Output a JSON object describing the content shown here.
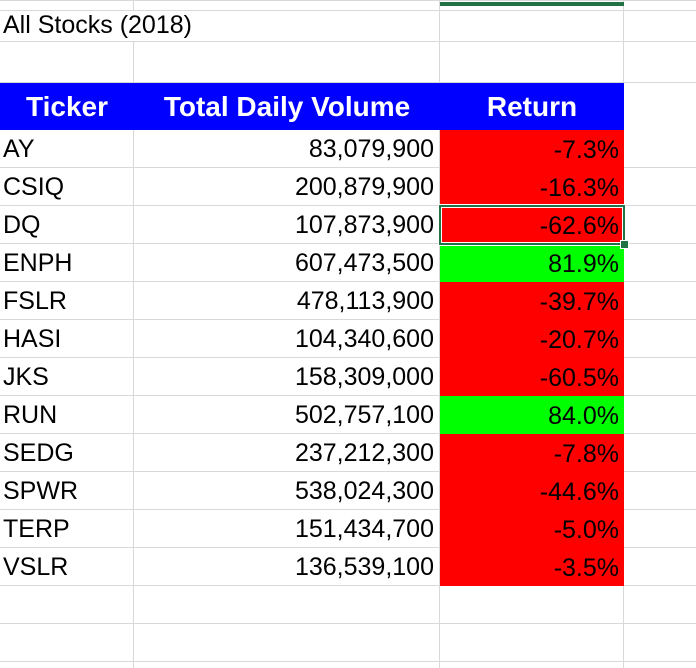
{
  "sheet": {
    "title": "All Stocks (2018)",
    "table": {
      "headers": [
        "Ticker",
        "Total Daily Volume",
        "Return"
      ],
      "rows": [
        {
          "ticker": "AY",
          "volume": "83,079,900",
          "return": "-7.3%",
          "positive": false
        },
        {
          "ticker": "CSIQ",
          "volume": "200,879,900",
          "return": "-16.3%",
          "positive": false
        },
        {
          "ticker": "DQ",
          "volume": "107,873,900",
          "return": "-62.6%",
          "positive": false,
          "selected": true
        },
        {
          "ticker": "ENPH",
          "volume": "607,473,500",
          "return": "81.9%",
          "positive": true
        },
        {
          "ticker": "FSLR",
          "volume": "478,113,900",
          "return": "-39.7%",
          "positive": false
        },
        {
          "ticker": "HASI",
          "volume": "104,340,600",
          "return": "-20.7%",
          "positive": false
        },
        {
          "ticker": "JKS",
          "volume": "158,309,000",
          "return": "-60.5%",
          "positive": false
        },
        {
          "ticker": "RUN",
          "volume": "502,757,100",
          "return": "84.0%",
          "positive": true
        },
        {
          "ticker": "SEDG",
          "volume": "237,212,300",
          "return": "-7.8%",
          "positive": false
        },
        {
          "ticker": "SPWR",
          "volume": "538,024,300",
          "return": "-44.6%",
          "positive": false
        },
        {
          "ticker": "TERP",
          "volume": "151,434,700",
          "return": "-5.0%",
          "positive": false
        },
        {
          "ticker": "VSLR",
          "volume": "136,539,100",
          "return": "-3.5%",
          "positive": false
        }
      ]
    },
    "selection": {
      "ticker": "DQ",
      "column": "Return",
      "value": "-62.6%"
    },
    "colors": {
      "header_bg": "#0000FF",
      "header_text": "#FFFFFF",
      "negative_bg": "#FF0000",
      "positive_bg": "#00FF00",
      "selection_border": "#217346",
      "gridline": "#D8D8D8",
      "cell_text": "#000000",
      "sheet_bg": "#FFFFFF"
    }
  }
}
